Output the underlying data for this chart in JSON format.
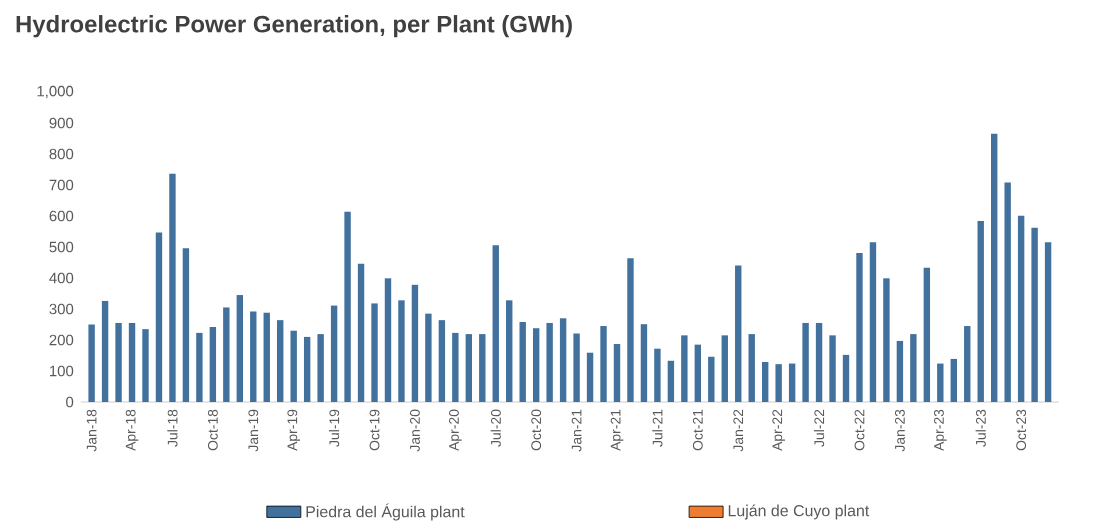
{
  "chart_data": {
    "type": "bar",
    "title": "Hydroelectric Power Generation, per Plant (GWh)",
    "categories": [
      "Jan-18",
      null,
      null,
      "Apr-18",
      null,
      null,
      "Jul-18",
      null,
      null,
      "Oct-18",
      null,
      null,
      "Jan-19",
      null,
      null,
      "Apr-19",
      null,
      null,
      "Jul-19",
      null,
      null,
      "Oct-19",
      null,
      null,
      "Jan-20",
      null,
      null,
      "Apr-20",
      null,
      null,
      "Jul-20",
      null,
      null,
      "Oct-20",
      null,
      null,
      "Jan-21",
      null,
      null,
      "Apr-21",
      null,
      null,
      "Jul-21",
      null,
      null,
      "Oct-21",
      null,
      null,
      "Jan-22",
      null,
      null,
      "Apr-22",
      null,
      null,
      "Jul-22",
      null,
      null,
      "Oct-22",
      null,
      null,
      "Jan-23",
      null,
      null,
      "Apr-23",
      null,
      null,
      "Jul-23",
      null,
      null,
      "Oct-23",
      null,
      null
    ],
    "series": [
      {
        "name": "Piedra del Águila plant",
        "color": "#41719c",
        "values": [
          250,
          326,
          255,
          255,
          235,
          547,
          736,
          496,
          223,
          242,
          305,
          345,
          292,
          288,
          264,
          230,
          210,
          219,
          311,
          614,
          446,
          318,
          399,
          328,
          378,
          285,
          264,
          223,
          219,
          219,
          506,
          328,
          258,
          238,
          255,
          270,
          221,
          159,
          245,
          187,
          464,
          251,
          172,
          133,
          215,
          185,
          146,
          215,
          440,
          219,
          129,
          122,
          124,
          255,
          255,
          215,
          152,
          481,
          515,
          399,
          197,
          219,
          433,
          124,
          139,
          245,
          584,
          865,
          708,
          601,
          562,
          515
        ]
      },
      {
        "name": "Luján de Cuyo plant",
        "color": "#ed7d31",
        "values": [
          null,
          null,
          null,
          null,
          null,
          null,
          null,
          null,
          null,
          null,
          null,
          null,
          null,
          null,
          null,
          null,
          null,
          null,
          null,
          null,
          null,
          null,
          null,
          null,
          null,
          null,
          null,
          null,
          null,
          null,
          null,
          null,
          null,
          null,
          null,
          null,
          null,
          null,
          null,
          null,
          null,
          null,
          null,
          null,
          null,
          null,
          null,
          null,
          null,
          null,
          null,
          null,
          null,
          null,
          null,
          null,
          null,
          null,
          null,
          null,
          null,
          null,
          null,
          null,
          null,
          null,
          null,
          null,
          null,
          null,
          null,
          null
        ]
      }
    ],
    "ylim": [
      0,
      1000
    ],
    "yticks": [
      0,
      {
        "value": 100,
        "label": "100"
      },
      {
        "value": 200,
        "label": "200"
      },
      {
        "value": 300,
        "label": "300"
      },
      {
        "value": 400,
        "label": "400"
      },
      {
        "value": 500,
        "label": "500"
      },
      {
        "value": 600,
        "label": "600"
      },
      {
        "value": 700,
        "label": "700"
      },
      {
        "value": 800,
        "label": "800"
      },
      {
        "value": 900,
        "label": "900"
      },
      {
        "value": 1000,
        "label": "1,000"
      }
    ],
    "grid": false,
    "legend": "bottom"
  }
}
